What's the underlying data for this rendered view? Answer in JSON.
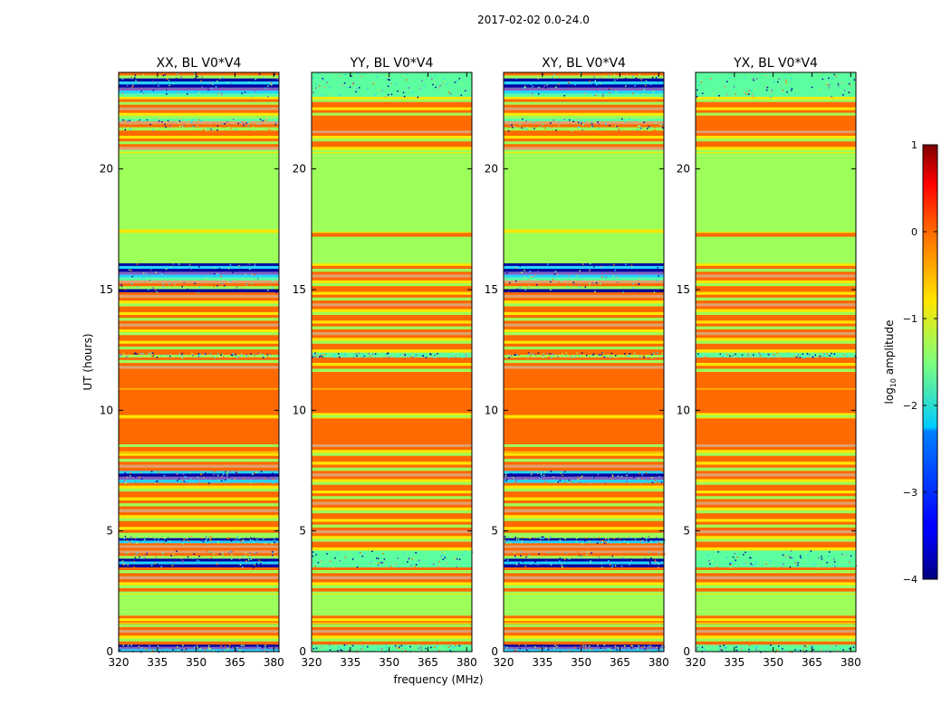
{
  "chart_data": {
    "type": "heatmap",
    "suptitle": "2017-02-02 0.0-24.0",
    "ylabel": "UT (hours)",
    "xlabel": "frequency (MHz)",
    "xlim": [
      320,
      382
    ],
    "ylim": [
      0,
      24
    ],
    "xticks": [
      320,
      335,
      350,
      365,
      380
    ],
    "yticks": [
      0,
      5,
      10,
      15,
      20
    ],
    "colorbar": {
      "label": "log10 amplitude",
      "label_base": "log",
      "label_sub": "10",
      "label_rest": " amplitude",
      "range": [
        -4,
        1
      ],
      "ticks": [
        1,
        0,
        -1,
        -2,
        -3,
        -4
      ],
      "tick_labels": [
        "1",
        "0",
        "−1",
        "−2",
        "−3",
        "−4"
      ]
    },
    "color_levels": {
      "orange": "#ff6a00",
      "lightgreen": "#9cff5a",
      "yellow": "#ffe600",
      "cyan": "#28d2ff",
      "teal": "#5cffa0",
      "navy": "#0000a0",
      "purple": "#8060c0",
      "salmon": "#e0a070"
    },
    "panels": [
      {
        "title": "XX, BL V0*V4",
        "bands": [
          {
            "t0": 0.0,
            "t1": 0.3,
            "level": "noisy"
          },
          {
            "t0": 0.3,
            "t1": 1.5,
            "level": "striped"
          },
          {
            "t0": 1.5,
            "t1": 2.5,
            "level": "lightgreen"
          },
          {
            "t0": 2.5,
            "t1": 3.5,
            "level": "striped"
          },
          {
            "t0": 3.5,
            "t1": 4.2,
            "level": "noisy"
          },
          {
            "t0": 4.2,
            "t1": 4.5,
            "level": "striped"
          },
          {
            "t0": 4.5,
            "t1": 4.8,
            "level": "noisy"
          },
          {
            "t0": 4.8,
            "t1": 7.0,
            "level": "striped"
          },
          {
            "t0": 7.0,
            "t1": 7.5,
            "level": "noisy"
          },
          {
            "t0": 7.5,
            "t1": 8.6,
            "level": "striped"
          },
          {
            "t0": 8.6,
            "t1": 9.6,
            "level": "orange"
          },
          {
            "t0": 9.6,
            "t1": 9.9,
            "level": "striped"
          },
          {
            "t0": 9.9,
            "t1": 11.6,
            "level": "orange"
          },
          {
            "t0": 11.6,
            "t1": 12.2,
            "level": "striped"
          },
          {
            "t0": 12.2,
            "t1": 12.4,
            "level": "noisy"
          },
          {
            "t0": 12.4,
            "t1": 14.9,
            "level": "striped"
          },
          {
            "t0": 14.9,
            "t1": 16.1,
            "level": "noisy"
          },
          {
            "t0": 16.1,
            "t1": 17.2,
            "level": "lightgreen"
          },
          {
            "t0": 17.2,
            "t1": 17.5,
            "level": "striped"
          },
          {
            "t0": 17.5,
            "t1": 20.8,
            "level": "lightgreen"
          },
          {
            "t0": 20.8,
            "t1": 21.6,
            "level": "striped"
          },
          {
            "t0": 21.6,
            "t1": 22.1,
            "level": "noisy"
          },
          {
            "t0": 22.1,
            "t1": 23.0,
            "level": "striped"
          },
          {
            "t0": 23.0,
            "t1": 24.0,
            "level": "noisy"
          }
        ]
      },
      {
        "title": "YY, BL V0*V4",
        "bands": [
          {
            "t0": 0.0,
            "t1": 0.3,
            "level": "teal"
          },
          {
            "t0": 0.3,
            "t1": 1.5,
            "level": "striped"
          },
          {
            "t0": 1.5,
            "t1": 2.5,
            "level": "lightgreen"
          },
          {
            "t0": 2.5,
            "t1": 3.5,
            "level": "striped"
          },
          {
            "t0": 3.5,
            "t1": 4.2,
            "level": "teal"
          },
          {
            "t0": 4.2,
            "t1": 7.5,
            "level": "striped"
          },
          {
            "t0": 7.5,
            "t1": 8.6,
            "level": "striped"
          },
          {
            "t0": 8.6,
            "t1": 9.6,
            "level": "orange"
          },
          {
            "t0": 9.6,
            "t1": 9.9,
            "level": "striped"
          },
          {
            "t0": 9.9,
            "t1": 11.6,
            "level": "orange"
          },
          {
            "t0": 11.6,
            "t1": 12.2,
            "level": "striped"
          },
          {
            "t0": 12.2,
            "t1": 12.4,
            "level": "teal"
          },
          {
            "t0": 12.4,
            "t1": 16.1,
            "level": "striped"
          },
          {
            "t0": 16.1,
            "t1": 17.2,
            "level": "lightgreen"
          },
          {
            "t0": 17.2,
            "t1": 17.5,
            "level": "striped"
          },
          {
            "t0": 17.5,
            "t1": 20.8,
            "level": "lightgreen"
          },
          {
            "t0": 20.8,
            "t1": 21.6,
            "level": "striped"
          },
          {
            "t0": 21.6,
            "t1": 22.1,
            "level": "orange"
          },
          {
            "t0": 22.1,
            "t1": 23.0,
            "level": "striped"
          },
          {
            "t0": 23.0,
            "t1": 24.0,
            "level": "teal"
          }
        ]
      },
      {
        "title": "XY, BL V0*V4",
        "bands": [
          {
            "t0": 0.0,
            "t1": 0.3,
            "level": "noisy"
          },
          {
            "t0": 0.3,
            "t1": 1.5,
            "level": "striped"
          },
          {
            "t0": 1.5,
            "t1": 2.5,
            "level": "lightgreen"
          },
          {
            "t0": 2.5,
            "t1": 3.5,
            "level": "striped"
          },
          {
            "t0": 3.5,
            "t1": 4.2,
            "level": "noisy"
          },
          {
            "t0": 4.2,
            "t1": 4.5,
            "level": "striped"
          },
          {
            "t0": 4.5,
            "t1": 4.8,
            "level": "noisy"
          },
          {
            "t0": 4.8,
            "t1": 7.0,
            "level": "striped"
          },
          {
            "t0": 7.0,
            "t1": 7.5,
            "level": "noisy"
          },
          {
            "t0": 7.5,
            "t1": 8.6,
            "level": "striped"
          },
          {
            "t0": 8.6,
            "t1": 9.6,
            "level": "orange"
          },
          {
            "t0": 9.6,
            "t1": 9.9,
            "level": "striped"
          },
          {
            "t0": 9.9,
            "t1": 11.6,
            "level": "orange"
          },
          {
            "t0": 11.6,
            "t1": 12.2,
            "level": "striped"
          },
          {
            "t0": 12.2,
            "t1": 12.4,
            "level": "noisy"
          },
          {
            "t0": 12.4,
            "t1": 14.9,
            "level": "striped"
          },
          {
            "t0": 14.9,
            "t1": 16.1,
            "level": "noisy"
          },
          {
            "t0": 16.1,
            "t1": 17.2,
            "level": "lightgreen"
          },
          {
            "t0": 17.2,
            "t1": 17.5,
            "level": "striped"
          },
          {
            "t0": 17.5,
            "t1": 20.8,
            "level": "lightgreen"
          },
          {
            "t0": 20.8,
            "t1": 21.6,
            "level": "striped"
          },
          {
            "t0": 21.6,
            "t1": 22.1,
            "level": "noisy"
          },
          {
            "t0": 22.1,
            "t1": 23.0,
            "level": "striped"
          },
          {
            "t0": 23.0,
            "t1": 24.0,
            "level": "noisy"
          }
        ]
      },
      {
        "title": "YX, BL V0*V4",
        "bands": [
          {
            "t0": 0.0,
            "t1": 0.3,
            "level": "teal"
          },
          {
            "t0": 0.3,
            "t1": 1.5,
            "level": "striped"
          },
          {
            "t0": 1.5,
            "t1": 2.5,
            "level": "lightgreen"
          },
          {
            "t0": 2.5,
            "t1": 3.5,
            "level": "striped"
          },
          {
            "t0": 3.5,
            "t1": 4.2,
            "level": "teal"
          },
          {
            "t0": 4.2,
            "t1": 7.5,
            "level": "striped"
          },
          {
            "t0": 7.5,
            "t1": 8.6,
            "level": "striped"
          },
          {
            "t0": 8.6,
            "t1": 9.6,
            "level": "orange"
          },
          {
            "t0": 9.6,
            "t1": 9.9,
            "level": "striped"
          },
          {
            "t0": 9.9,
            "t1": 11.6,
            "level": "orange"
          },
          {
            "t0": 11.6,
            "t1": 12.2,
            "level": "striped"
          },
          {
            "t0": 12.2,
            "t1": 12.4,
            "level": "teal"
          },
          {
            "t0": 12.4,
            "t1": 16.1,
            "level": "striped"
          },
          {
            "t0": 16.1,
            "t1": 17.2,
            "level": "lightgreen"
          },
          {
            "t0": 17.2,
            "t1": 17.5,
            "level": "striped"
          },
          {
            "t0": 17.5,
            "t1": 20.8,
            "level": "lightgreen"
          },
          {
            "t0": 20.8,
            "t1": 21.6,
            "level": "striped"
          },
          {
            "t0": 21.6,
            "t1": 22.1,
            "level": "orange"
          },
          {
            "t0": 22.1,
            "t1": 23.0,
            "level": "striped"
          },
          {
            "t0": 23.0,
            "t1": 24.0,
            "level": "teal"
          }
        ]
      }
    ]
  }
}
